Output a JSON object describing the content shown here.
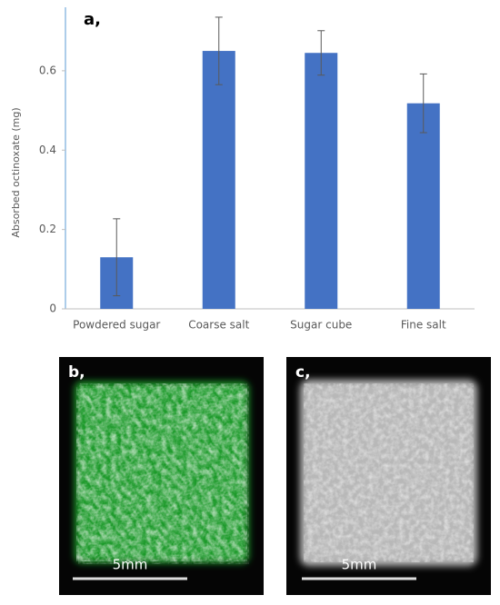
{
  "chart_data": {
    "type": "bar",
    "panel_label": "a,",
    "y_label": "Absorbed octinoxate (mg)",
    "categories": [
      "Powdered sugar",
      "Coarse salt",
      "Sugar cube",
      "Fine salt"
    ],
    "values": [
      0.13,
      0.65,
      0.645,
      0.518
    ],
    "errors": [
      0.097,
      0.085,
      0.056,
      0.074
    ],
    "color": "#4472c4",
    "ylim": [
      0,
      0.76
    ],
    "yticks": [
      0,
      0.2,
      0.4,
      0.6
    ],
    "grid": false
  },
  "panels": [
    {
      "label": "b,",
      "scale_label": "5mm"
    },
    {
      "label": "c,",
      "scale_label": "5mm"
    }
  ]
}
